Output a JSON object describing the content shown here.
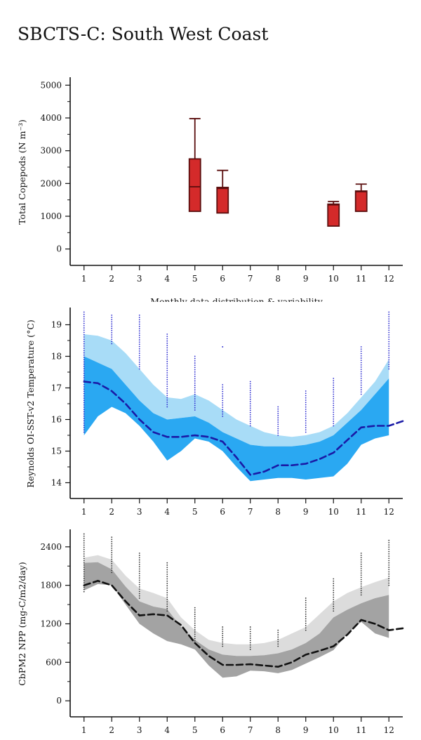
{
  "page": {
    "title": "SBCTS-C: South West Coast"
  },
  "chart_data": [
    {
      "type": "box",
      "ylabel": "Total Copepods (N m⁻³)",
      "xlabel": "Monthly data distribution & variability",
      "x_ticks": [
        1,
        2,
        3,
        4,
        5,
        6,
        7,
        8,
        9,
        10,
        11,
        12
      ],
      "y_ticks": [
        0,
        1000,
        2000,
        3000,
        4000,
        5000
      ],
      "xlim": [
        0.5,
        12.5
      ],
      "ylim": [
        -500,
        5200
      ],
      "colors": {
        "box_fill": "#d42a2a",
        "box_stroke": "#5a0e0e"
      },
      "boxes": [
        {
          "month": 5,
          "whisker_low": 1150,
          "q1": 1150,
          "median": 1900,
          "q3": 2750,
          "whisker_high": 3980
        },
        {
          "month": 6,
          "whisker_low": 1100,
          "q1": 1100,
          "median": 1850,
          "q3": 1880,
          "whisker_high": 2400
        },
        {
          "month": 10,
          "whisker_low": 700,
          "q1": 700,
          "median": 1350,
          "q3": 1370,
          "whisker_high": 1450
        },
        {
          "month": 11,
          "whisker_low": 1150,
          "q1": 1150,
          "median": 1750,
          "q3": 1770,
          "whisker_high": 1980
        }
      ]
    },
    {
      "type": "area",
      "ylabel": "Reynolds OI-SST-v2 Temperature (°C)",
      "x_ticks": [
        1,
        2,
        3,
        4,
        5,
        6,
        7,
        8,
        9,
        10,
        11,
        12
      ],
      "y_ticks": [
        14,
        15,
        16,
        17,
        18,
        19
      ],
      "xlim": [
        0.5,
        12.5
      ],
      "ylim": [
        13.5,
        19.5
      ],
      "colors": {
        "outer_band": "#a8dcf7",
        "inner_band": "#2aa8f2",
        "mean_line": "#1a1aa6",
        "points": "#2b2bd0"
      },
      "x": [
        1,
        1.5,
        2,
        2.5,
        3,
        3.5,
        4,
        4.5,
        5,
        5.5,
        6,
        6.5,
        7,
        7.5,
        8,
        8.5,
        9,
        9.5,
        10,
        10.5,
        11,
        11.5,
        12,
        12.5
      ],
      "outer_upper": [
        18.7,
        18.65,
        18.5,
        18.1,
        17.6,
        17.1,
        16.7,
        16.65,
        16.8,
        16.6,
        16.3,
        16.0,
        15.8,
        15.6,
        15.5,
        15.45,
        15.5,
        15.6,
        15.8,
        16.2,
        16.7,
        17.2,
        17.9,
        null
      ],
      "inner_upper": [
        18.0,
        17.8,
        17.6,
        17.1,
        16.6,
        16.2,
        16.0,
        16.05,
        16.1,
        15.9,
        15.6,
        15.4,
        15.2,
        15.15,
        15.15,
        15.15,
        15.2,
        15.3,
        15.5,
        15.9,
        16.3,
        16.8,
        17.3,
        null
      ],
      "inner_lower": [
        15.5,
        16.1,
        16.4,
        16.2,
        15.8,
        15.3,
        14.7,
        15.0,
        15.4,
        15.3,
        15.0,
        14.5,
        14.05,
        14.1,
        14.15,
        14.15,
        14.1,
        14.15,
        14.2,
        14.6,
        15.2,
        15.4,
        15.5,
        null
      ],
      "mean": [
        17.2,
        17.15,
        16.9,
        16.5,
        16.0,
        15.6,
        15.45,
        15.45,
        15.5,
        15.45,
        15.3,
        14.8,
        14.25,
        14.35,
        14.55,
        14.55,
        14.6,
        14.75,
        14.95,
        15.35,
        15.75,
        15.8,
        15.8,
        15.95
      ],
      "point_columns": [
        {
          "month": 1,
          "min": 15.6,
          "max": 19.4
        },
        {
          "month": 2,
          "min": 18.4,
          "max": 19.3
        },
        {
          "month": 3,
          "min": 17.6,
          "max": 19.3
        },
        {
          "month": 4,
          "min": 16.4,
          "max": 18.7
        },
        {
          "month": 5,
          "min": 16.3,
          "max": 18.0
        },
        {
          "month": 6,
          "min": 16.1,
          "max": 17.1
        },
        {
          "month": 6,
          "min": 18.3,
          "max": 18.3
        },
        {
          "month": 7,
          "min": 15.8,
          "max": 17.2
        },
        {
          "month": 8,
          "min": 15.5,
          "max": 16.4
        },
        {
          "month": 9,
          "min": 15.6,
          "max": 16.9
        },
        {
          "month": 10,
          "min": 15.8,
          "max": 17.3
        },
        {
          "month": 11,
          "min": 16.8,
          "max": 18.3
        },
        {
          "month": 12,
          "min": 17.6,
          "max": 19.4
        }
      ]
    },
    {
      "type": "area",
      "ylabel": "CbPM2 NPP (mg-C/m2/day)",
      "x_ticks": [
        1,
        2,
        3,
        4,
        5,
        6,
        7,
        8,
        9,
        10,
        11,
        12
      ],
      "y_ticks": [
        0,
        600,
        1200,
        1800,
        2400
      ],
      "xlim": [
        0.5,
        12.5
      ],
      "ylim": [
        -250,
        2650
      ],
      "colors": {
        "outer_band": "#dcdcdc",
        "inner_band": "#a3a3a3",
        "mean_line": "#111111",
        "points": "#333333"
      },
      "x": [
        1,
        1.5,
        2,
        2.5,
        3,
        3.5,
        4,
        4.5,
        5,
        5.5,
        6,
        6.5,
        7,
        7.5,
        8,
        8.5,
        9,
        9.5,
        10,
        10.5,
        11,
        11.5,
        12,
        12.5
      ],
      "outer_upper": [
        2230,
        2270,
        2200,
        1950,
        1750,
        1680,
        1600,
        1300,
        1100,
        950,
        900,
        880,
        880,
        900,
        950,
        1050,
        1150,
        1350,
        1550,
        1680,
        1770,
        1850,
        1920,
        null
      ],
      "inner_upper": [
        2150,
        2160,
        2050,
        1780,
        1550,
        1470,
        1430,
        1150,
        950,
        800,
        720,
        700,
        700,
        710,
        740,
        800,
        900,
        1050,
        1300,
        1420,
        1520,
        1600,
        1650,
        null
      ],
      "inner_lower": [
        1720,
        1820,
        1800,
        1500,
        1200,
        1050,
        930,
        880,
        800,
        550,
        360,
        380,
        470,
        460,
        430,
        480,
        580,
        680,
        790,
        1050,
        1230,
        1050,
        980,
        null
      ],
      "mean": [
        1800,
        1870,
        1800,
        1550,
        1330,
        1350,
        1330,
        1180,
        900,
        700,
        560,
        560,
        570,
        550,
        530,
        600,
        720,
        780,
        850,
        1030,
        1260,
        1200,
        1100,
        1130
      ],
      "point_columns": [
        {
          "month": 1,
          "min": 1700,
          "max": 2600
        },
        {
          "month": 2,
          "min": 2000,
          "max": 2550
        },
        {
          "month": 3,
          "min": 1600,
          "max": 2300
        },
        {
          "month": 4,
          "min": 1400,
          "max": 2150
        },
        {
          "month": 5,
          "min": 900,
          "max": 1450
        },
        {
          "month": 6,
          "min": 850,
          "max": 1150
        },
        {
          "month": 7,
          "min": 800,
          "max": 1150
        },
        {
          "month": 8,
          "min": 850,
          "max": 1100
        },
        {
          "month": 9,
          "min": 1100,
          "max": 1600
        },
        {
          "month": 10,
          "min": 1400,
          "max": 1900
        },
        {
          "month": 11,
          "min": 1650,
          "max": 2300
        },
        {
          "month": 12,
          "min": 1800,
          "max": 2500
        }
      ]
    }
  ]
}
